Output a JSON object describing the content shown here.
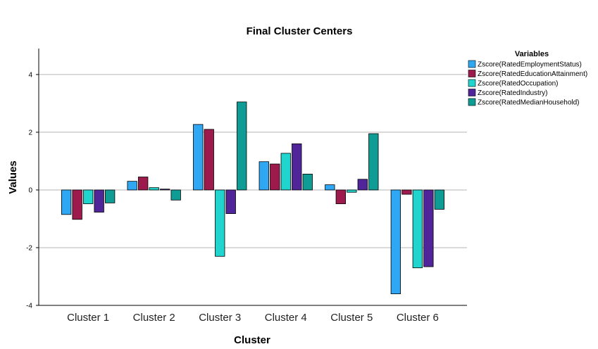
{
  "chart_data": {
    "type": "bar",
    "title": "Final Cluster Centers",
    "xlabel": "Cluster",
    "ylabel": "Values",
    "ylim": [
      -4,
      4.9
    ],
    "yticks": [
      -4,
      -2,
      0,
      2,
      4
    ],
    "ytick_labels": [
      "-4",
      "-2",
      "0",
      "2",
      "4"
    ],
    "grid": "horizontal",
    "legend_title": "Variables",
    "legend_position": "top-right",
    "categories": [
      "Cluster 1",
      "Cluster 2",
      "Cluster 3",
      "Cluster 4",
      "Cluster 5",
      "Cluster 6"
    ],
    "series": [
      {
        "name": "Zscore(RatedEmploymentStatus)",
        "color": "#2FA7F3",
        "values": [
          -0.85,
          0.3,
          2.27,
          0.98,
          0.18,
          -3.6
        ]
      },
      {
        "name": "Zscore(RatedEducationAttainment)",
        "color": "#9C1B4C",
        "values": [
          -1.02,
          0.45,
          2.1,
          0.9,
          -0.48,
          -0.15
        ]
      },
      {
        "name": "Zscore(RatedOccupation)",
        "color": "#1FD5CD",
        "values": [
          -0.48,
          0.08,
          -2.3,
          1.27,
          -0.08,
          -2.7
        ]
      },
      {
        "name": "Zscore(RatedIndustry)",
        "color": "#51259A",
        "values": [
          -0.77,
          0.03,
          -0.82,
          1.6,
          0.37,
          -2.66
        ]
      },
      {
        "name": "Zscore(RatedMedianHousehold)",
        "color": "#0F9C95",
        "values": [
          -0.45,
          -0.35,
          3.05,
          0.55,
          1.95,
          -0.67
        ]
      }
    ]
  }
}
